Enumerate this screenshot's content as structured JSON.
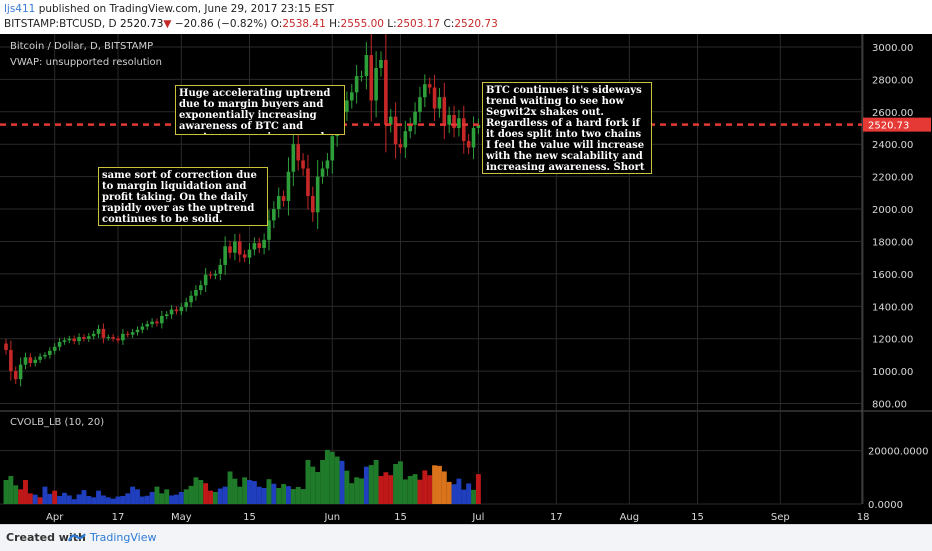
{
  "header": {
    "user": "ljs411",
    "published": " published on TradingView.com, June 29, 2017 23:15 EST",
    "symbol": "BITSTAMP:BTCUSD, D",
    "last": "2520.73",
    "change": "−20.86 (−0.82%)",
    "o_label": "O:",
    "o_value": "2538.41",
    "h_label": "H:",
    "h_value": "2555.00",
    "l_label": "L:",
    "l_value": "2503.17",
    "c_label": "C:",
    "c_value": "2520.73"
  },
  "colors": {
    "background": "#000000",
    "grid": "#2a2a2a",
    "candle_up": "#2e9e3a",
    "candle_down": "#c62828",
    "price_line": "#e53935",
    "price_tag": "#e53935",
    "annotation_border": "#c9c23a",
    "vol_green": "#1f7a2a",
    "vol_red": "#c01818",
    "vol_blue": "#1f3fbf",
    "vol_orange": "#d9741c"
  },
  "chart_data": {
    "type": "candlestick",
    "title": "Bitcoin / Dollar, D, BITSTAMP",
    "indicator": "VWAP: unsupported resolution",
    "last_price": 2520.73,
    "price_label": "2520.73",
    "ylim": [
      760,
      3080
    ],
    "y_ticks": [
      "3000.00",
      "2800.00",
      "2600.00",
      "2400.00",
      "2200.00",
      "2000.00",
      "1800.00",
      "1600.00",
      "1400.00",
      "1200.00",
      "1000.00",
      "800.00"
    ],
    "x_ticks": [
      "Apr",
      "17",
      "May",
      "15",
      "Jun",
      "15",
      "Jul",
      "17",
      "Aug",
      "15",
      "Sep",
      "18"
    ],
    "close": [
      1130,
      1000,
      950,
      1040,
      1085,
      1050,
      1070,
      1090,
      1100,
      1125,
      1150,
      1180,
      1190,
      1200,
      1185,
      1210,
      1200,
      1215,
      1230,
      1260,
      1205,
      1210,
      1200,
      1190,
      1230,
      1225,
      1240,
      1255,
      1275,
      1290,
      1305,
      1295,
      1340,
      1350,
      1380,
      1370,
      1395,
      1425,
      1465,
      1500,
      1530,
      1595,
      1590,
      1600,
      1655,
      1770,
      1730,
      1800,
      1720,
      1700,
      1750,
      1790,
      1760,
      1810,
      1930,
      2000,
      2080,
      2050,
      2230,
      2400,
      2300,
      2250,
      2080,
      1980,
      2200,
      2250,
      2300,
      2450,
      2550,
      2600,
      2670,
      2720,
      2820,
      2820,
      2950,
      2670,
      2870,
      2920,
      2520,
      2570,
      2400,
      2380,
      2480,
      2520,
      2600,
      2690,
      2770,
      2750,
      2620,
      2690,
      2520,
      2580,
      2500,
      2560,
      2420,
      2380,
      2500,
      2520
    ],
    "annotations": [
      "Huge accelerating uptrend due to margin buyers and exponentially increasing awareness of BTC and cryptocurrency in general.",
      "same sort of correction due to margin liquidation and profit taking.  On the daily rapidly over as the uptrend continues to be solid.",
      "BTC continues it's sideways trend waiting to see how Segwit2x shakes out. Regardless of a hard fork if it does split into two chains I feel the value will increase with the new scalability and increasing awareness.  Short term t"
    ],
    "volume_indicator": {
      "label": "CVOLB_LB (10, 20)",
      "ylim": [
        0,
        30000
      ],
      "y_ticks": [
        "20000.0000",
        "0.0000"
      ],
      "values": [
        9000,
        10500,
        7000,
        5500,
        9000,
        4000,
        3500,
        2500,
        6500,
        3800,
        5000,
        3000,
        4200,
        3200,
        1800,
        3600,
        5200,
        3000,
        2500,
        5000,
        3200,
        2500,
        2000,
        2800,
        3000,
        4000,
        6500,
        5500,
        2800,
        3100,
        4500,
        6500,
        4000,
        5500,
        3200,
        3500,
        4500,
        5500,
        6800,
        10000,
        9000,
        7800,
        5000,
        4500,
        5800,
        6500,
        12200,
        9500,
        6500,
        10000,
        9000,
        8600,
        6500,
        6000,
        9300,
        7600,
        6000,
        7500,
        6700,
        5600,
        6400,
        5600,
        16500,
        14000,
        12000,
        16500,
        20300,
        19600,
        17800,
        16200,
        12500,
        7800,
        10000,
        9600,
        14000,
        14600,
        16500,
        10500,
        11900,
        10800,
        15000,
        16000,
        9200,
        10500,
        11200,
        9100,
        12600,
        10800,
        14500,
        14300,
        12200,
        8300,
        7400,
        9500,
        5400,
        7700,
        5300,
        11200
      ],
      "colors": "gggrrrbrbbrbbbbbbbbbbbbbbbbbbbbgggbbbggggrrgbbggggbbbbgbggbggggggggggbggggbggrrrgggggrrroooobbbbgr"
    }
  },
  "footer": {
    "made_with": "Created with",
    "brand": "TradingView"
  }
}
